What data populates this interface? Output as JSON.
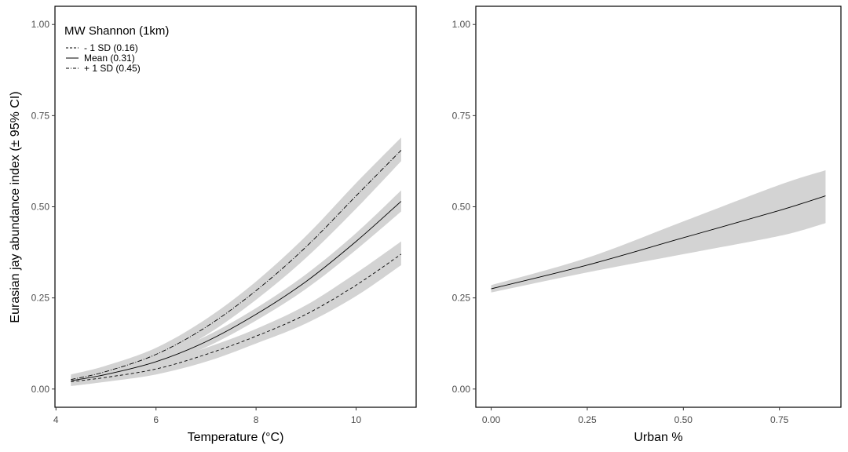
{
  "ylabel": "Eurasian jay abundance index (± 95% CI)",
  "colors": {
    "band": "#d3d3d3",
    "line": "#000000",
    "frame": "#000000",
    "tick_text": "#4d4d4d"
  },
  "chart_data": [
    {
      "type": "line",
      "xlabel": "Temperature (°C)",
      "xlim": [
        3.98,
        11.2
      ],
      "ylim": [
        -0.05,
        1.05
      ],
      "xticks": [
        4,
        6,
        8,
        10
      ],
      "xtick_labels": [
        "4",
        "6",
        "8",
        "10"
      ],
      "yticks": [
        0,
        0.25,
        0.5,
        0.75,
        1.0
      ],
      "ytick_labels": [
        "0.00",
        "0.25",
        "0.50",
        "0.75",
        "1.00"
      ],
      "grid": false,
      "legend": {
        "title": "MW Shannon (1km)",
        "position": "top-left",
        "entries": [
          "- 1 SD (0.16)",
          "Mean (0.31)",
          "+ 1 SD (0.45)"
        ]
      },
      "series": [
        {
          "name": "- 1 SD (0.16)",
          "linestyle": "dashed",
          "x": [
            4.3,
            5,
            6,
            7,
            8,
            9,
            10,
            10.9
          ],
          "values": [
            0.02,
            0.032,
            0.055,
            0.095,
            0.145,
            0.205,
            0.285,
            0.37
          ],
          "lower": [
            0.008,
            0.02,
            0.04,
            0.075,
            0.125,
            0.18,
            0.255,
            0.34
          ],
          "upper": [
            0.032,
            0.045,
            0.07,
            0.113,
            0.165,
            0.23,
            0.318,
            0.405
          ]
        },
        {
          "name": "Mean (0.31)",
          "linestyle": "solid",
          "x": [
            4.3,
            5,
            6,
            7,
            8,
            9,
            10,
            10.9
          ],
          "values": [
            0.023,
            0.04,
            0.075,
            0.13,
            0.205,
            0.295,
            0.405,
            0.515
          ],
          "lower": [
            0.012,
            0.028,
            0.062,
            0.115,
            0.188,
            0.275,
            0.382,
            0.487
          ],
          "upper": [
            0.035,
            0.052,
            0.088,
            0.145,
            0.222,
            0.315,
            0.428,
            0.545
          ]
        },
        {
          "name": "+ 1 SD (0.45)",
          "linestyle": "dashdot",
          "x": [
            4.3,
            5,
            6,
            7,
            8,
            9,
            10,
            10.9
          ],
          "values": [
            0.026,
            0.048,
            0.095,
            0.17,
            0.27,
            0.39,
            0.53,
            0.655
          ],
          "lower": [
            0.012,
            0.032,
            0.077,
            0.148,
            0.245,
            0.36,
            0.495,
            0.625
          ],
          "upper": [
            0.04,
            0.064,
            0.113,
            0.192,
            0.295,
            0.42,
            0.565,
            0.69
          ]
        }
      ]
    },
    {
      "type": "line",
      "xlabel": "Urban %",
      "xlim": [
        -0.04,
        0.91
      ],
      "ylim": [
        -0.05,
        1.05
      ],
      "xticks": [
        0,
        0.25,
        0.5,
        0.75
      ],
      "xtick_labels": [
        "0.00",
        "0.25",
        "0.50",
        "0.75"
      ],
      "yticks": [
        0,
        0.25,
        0.5,
        0.75,
        1.0
      ],
      "ytick_labels": [
        "0.00",
        "0.25",
        "0.50",
        "0.75",
        "1.00"
      ],
      "grid": false,
      "series": [
        {
          "linestyle": "solid",
          "x": [
            0,
            0.25,
            0.5,
            0.75,
            0.87
          ],
          "values": [
            0.275,
            0.34,
            0.415,
            0.49,
            0.53
          ],
          "lower": [
            0.265,
            0.32,
            0.37,
            0.42,
            0.455
          ],
          "upper": [
            0.285,
            0.36,
            0.46,
            0.56,
            0.6
          ]
        }
      ]
    }
  ]
}
